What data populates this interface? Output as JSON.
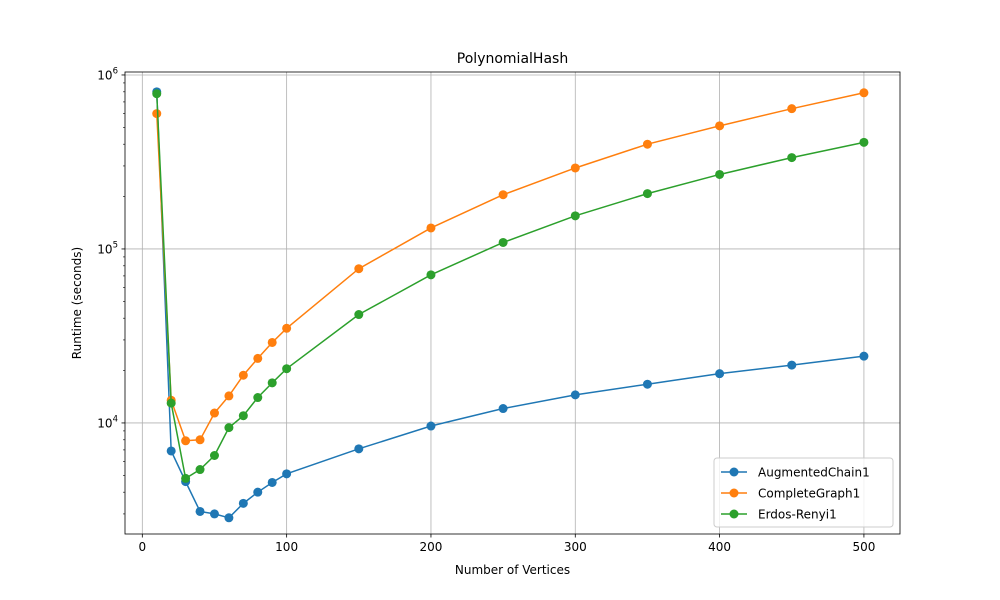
{
  "chart_data": {
    "type": "line",
    "title": "PolynomialHash",
    "xlabel": "Number of Vertices",
    "ylabel": "Runtime (seconds)",
    "xlim": [
      -12,
      525
    ],
    "ylim": [
      2300,
      1040000
    ],
    "yscale": "log",
    "grid": true,
    "legend_position": "lower-right",
    "x_ticks": [
      0,
      100,
      200,
      300,
      400,
      500
    ],
    "y_ticks": [
      {
        "value": 10000,
        "base": "10",
        "exp": "4"
      },
      {
        "value": 100000,
        "base": "10",
        "exp": "5"
      },
      {
        "value": 1000000,
        "base": "10",
        "exp": "6"
      }
    ],
    "x": [
      10,
      20,
      30,
      40,
      50,
      60,
      70,
      80,
      90,
      100,
      150,
      200,
      250,
      300,
      350,
      400,
      450,
      500
    ],
    "series": [
      {
        "name": "AugmentedChain1",
        "color": "#1f77b4",
        "values": [
          800000,
          6900,
          4600,
          3100,
          3000,
          2850,
          3450,
          4000,
          4550,
          5100,
          7100,
          9600,
          12100,
          14500,
          16700,
          19200,
          21500,
          24200
        ]
      },
      {
        "name": "CompleteGraph1",
        "color": "#ff7f0e",
        "values": [
          600000,
          13500,
          7900,
          8000,
          11400,
          14300,
          18800,
          23500,
          29000,
          35000,
          77000,
          132000,
          205000,
          292000,
          400000,
          510000,
          640000,
          790000
        ]
      },
      {
        "name": "Erdos-Renyi1",
        "color": "#2ca02c",
        "values": [
          780000,
          13000,
          4800,
          5400,
          6500,
          9400,
          11000,
          14000,
          17000,
          20500,
          42000,
          71000,
          109000,
          155000,
          208000,
          268000,
          335000,
          410000
        ]
      }
    ]
  }
}
